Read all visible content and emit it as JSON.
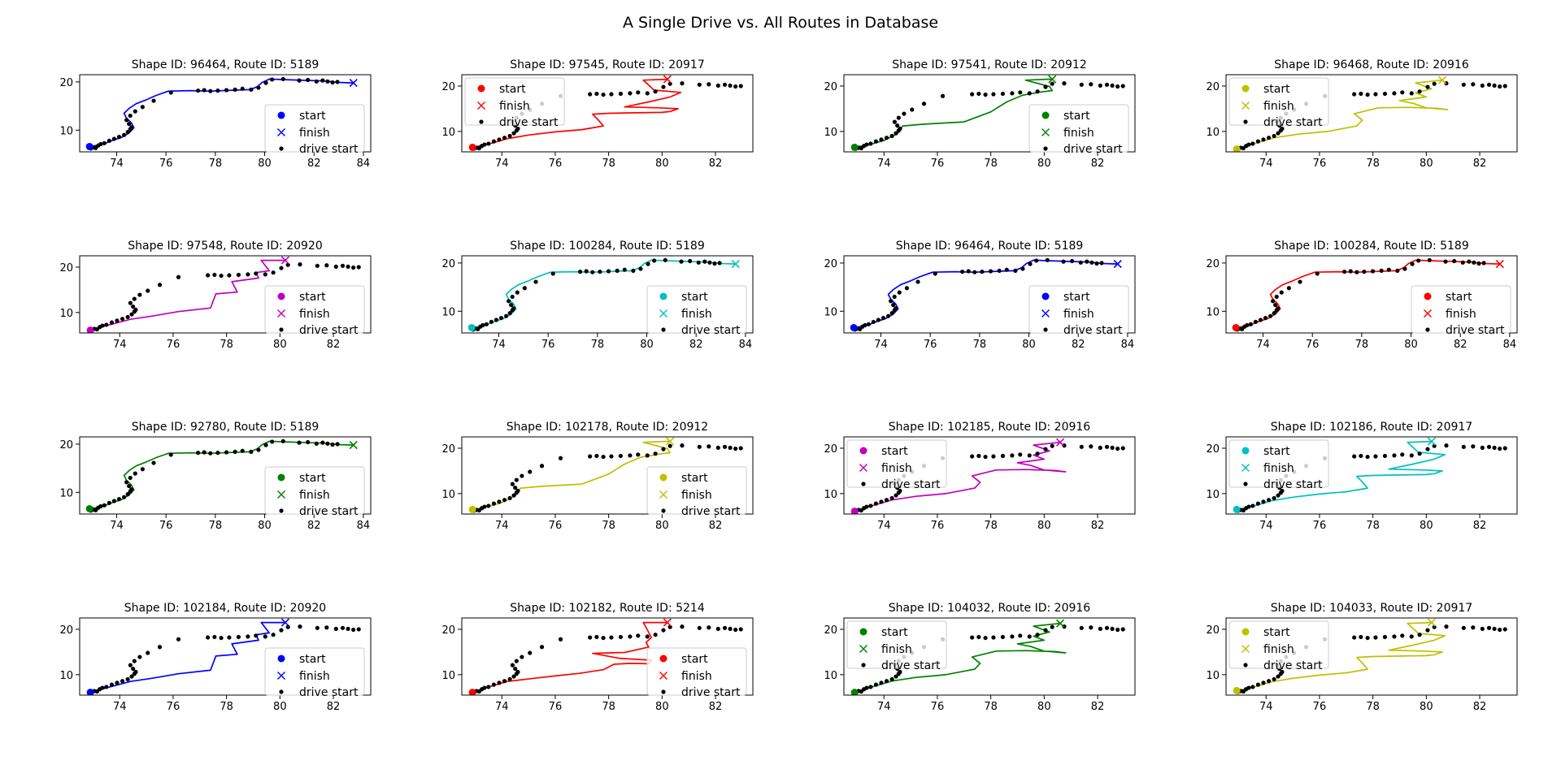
{
  "figure": {
    "title": "A Single Drive vs. All Routes in Database"
  },
  "chart_data": [
    {
      "type": "line",
      "title": "Shape ID: 96464, Route ID: 5189",
      "color": "#0000ff",
      "route": "A",
      "xlim": [
        72.5,
        84.3
      ],
      "xticks": [
        74,
        76,
        78,
        80,
        82,
        84
      ],
      "ylim": [
        5.5,
        21.5
      ],
      "yticks": [
        10,
        20
      ],
      "legend_loc": "lower-right",
      "series": [
        {
          "name": "start"
        },
        {
          "name": "finish"
        },
        {
          "name": "drive start"
        }
      ]
    },
    {
      "type": "line",
      "title": "Shape ID: 97545, Route ID: 20917",
      "color": "#ff0000",
      "route": "B",
      "xlim": [
        72.5,
        83.4
      ],
      "xticks": [
        74,
        76,
        78,
        80,
        82
      ],
      "ylim": [
        5.5,
        22.5
      ],
      "yticks": [
        10,
        20
      ],
      "legend_loc": "upper-left",
      "series": [
        {
          "name": "start"
        },
        {
          "name": "finish"
        },
        {
          "name": "drive start"
        }
      ]
    },
    {
      "type": "line",
      "title": "Shape ID: 97541, Route ID: 20912",
      "color": "#008000",
      "route": "C",
      "xlim": [
        72.5,
        83.4
      ],
      "xticks": [
        74,
        76,
        78,
        80,
        82
      ],
      "ylim": [
        5.5,
        22.5
      ],
      "yticks": [
        10,
        20
      ],
      "legend_loc": "lower-right",
      "series": [
        {
          "name": "start"
        },
        {
          "name": "finish"
        },
        {
          "name": "drive start"
        }
      ]
    },
    {
      "type": "line",
      "title": "Shape ID: 96468, Route ID: 20916",
      "color": "#bfbf00",
      "route": "D",
      "xlim": [
        72.5,
        83.4
      ],
      "xticks": [
        74,
        76,
        78,
        80,
        82
      ],
      "ylim": [
        5.5,
        22.5
      ],
      "yticks": [
        10,
        20
      ],
      "legend_loc": "upper-left",
      "series": [
        {
          "name": "start"
        },
        {
          "name": "finish"
        },
        {
          "name": "drive start"
        }
      ]
    },
    {
      "type": "line",
      "title": "Shape ID: 97548, Route ID: 20920",
      "color": "#bf00bf",
      "route": "E",
      "xlim": [
        72.5,
        83.4
      ],
      "xticks": [
        74,
        76,
        78,
        80,
        82
      ],
      "ylim": [
        5.5,
        22.5
      ],
      "yticks": [
        10,
        20
      ],
      "legend_loc": "lower-right",
      "series": [
        {
          "name": "start"
        },
        {
          "name": "finish"
        },
        {
          "name": "drive start"
        }
      ]
    },
    {
      "type": "line",
      "title": "Shape ID: 100284, Route ID: 5189",
      "color": "#00bfbf",
      "route": "A",
      "xlim": [
        72.5,
        84.3
      ],
      "xticks": [
        74,
        76,
        78,
        80,
        82,
        84
      ],
      "ylim": [
        5.5,
        21.5
      ],
      "yticks": [
        10,
        20
      ],
      "legend_loc": "lower-right",
      "series": [
        {
          "name": "start"
        },
        {
          "name": "finish"
        },
        {
          "name": "drive start"
        }
      ]
    },
    {
      "type": "line",
      "title": "Shape ID: 96464, Route ID: 5189",
      "color": "#0000ff",
      "route": "A",
      "xlim": [
        72.5,
        84.3
      ],
      "xticks": [
        74,
        76,
        78,
        80,
        82,
        84
      ],
      "ylim": [
        5.5,
        21.5
      ],
      "yticks": [
        10,
        20
      ],
      "legend_loc": "lower-right",
      "series": [
        {
          "name": "start"
        },
        {
          "name": "finish"
        },
        {
          "name": "drive start"
        }
      ]
    },
    {
      "type": "line",
      "title": "Shape ID: 100284, Route ID: 5189",
      "color": "#ff0000",
      "route": "A",
      "xlim": [
        72.5,
        84.3
      ],
      "xticks": [
        74,
        76,
        78,
        80,
        82,
        84
      ],
      "ylim": [
        5.5,
        21.5
      ],
      "yticks": [
        10,
        20
      ],
      "legend_loc": "lower-right",
      "series": [
        {
          "name": "start"
        },
        {
          "name": "finish"
        },
        {
          "name": "drive start"
        }
      ]
    },
    {
      "type": "line",
      "title": "Shape ID: 92780, Route ID: 5189",
      "color": "#008000",
      "route": "A",
      "xlim": [
        72.5,
        84.3
      ],
      "xticks": [
        74,
        76,
        78,
        80,
        82,
        84
      ],
      "ylim": [
        5.5,
        21.5
      ],
      "yticks": [
        10,
        20
      ],
      "legend_loc": "lower-right",
      "series": [
        {
          "name": "start"
        },
        {
          "name": "finish"
        },
        {
          "name": "drive start"
        }
      ]
    },
    {
      "type": "line",
      "title": "Shape ID: 102178, Route ID: 20912",
      "color": "#bfbf00",
      "route": "C",
      "xlim": [
        72.5,
        83.4
      ],
      "xticks": [
        74,
        76,
        78,
        80,
        82
      ],
      "ylim": [
        5.5,
        22.5
      ],
      "yticks": [
        10,
        20
      ],
      "legend_loc": "lower-right",
      "series": [
        {
          "name": "start"
        },
        {
          "name": "finish"
        },
        {
          "name": "drive start"
        }
      ]
    },
    {
      "type": "line",
      "title": "Shape ID: 102185, Route ID: 20916",
      "color": "#bf00bf",
      "route": "D",
      "xlim": [
        72.5,
        83.4
      ],
      "xticks": [
        74,
        76,
        78,
        80,
        82
      ],
      "ylim": [
        5.5,
        22.5
      ],
      "yticks": [
        10,
        20
      ],
      "legend_loc": "upper-left",
      "series": [
        {
          "name": "start"
        },
        {
          "name": "finish"
        },
        {
          "name": "drive start"
        }
      ]
    },
    {
      "type": "line",
      "title": "Shape ID: 102186, Route ID: 20917",
      "color": "#00bfbf",
      "route": "B",
      "xlim": [
        72.5,
        83.4
      ],
      "xticks": [
        74,
        76,
        78,
        80,
        82
      ],
      "ylim": [
        5.5,
        22.5
      ],
      "yticks": [
        10,
        20
      ],
      "legend_loc": "upper-left",
      "series": [
        {
          "name": "start"
        },
        {
          "name": "finish"
        },
        {
          "name": "drive start"
        }
      ]
    },
    {
      "type": "line",
      "title": "Shape ID: 102184, Route ID: 20920",
      "color": "#0000ff",
      "route": "E",
      "xlim": [
        72.5,
        83.4
      ],
      "xticks": [
        74,
        76,
        78,
        80,
        82
      ],
      "ylim": [
        5.5,
        22.5
      ],
      "yticks": [
        10,
        20
      ],
      "legend_loc": "lower-right",
      "series": [
        {
          "name": "start"
        },
        {
          "name": "finish"
        },
        {
          "name": "drive start"
        }
      ]
    },
    {
      "type": "line",
      "title": "Shape ID: 102182, Route ID: 5214",
      "color": "#ff0000",
      "route": "F",
      "xlim": [
        72.5,
        83.4
      ],
      "xticks": [
        74,
        76,
        78,
        80,
        82
      ],
      "ylim": [
        5.5,
        22.5
      ],
      "yticks": [
        10,
        20
      ],
      "legend_loc": "lower-right",
      "series": [
        {
          "name": "start"
        },
        {
          "name": "finish"
        },
        {
          "name": "drive start"
        }
      ]
    },
    {
      "type": "line",
      "title": "Shape ID: 104032, Route ID: 20916",
      "color": "#008000",
      "route": "D",
      "xlim": [
        72.5,
        83.4
      ],
      "xticks": [
        74,
        76,
        78,
        80,
        82
      ],
      "ylim": [
        5.5,
        22.5
      ],
      "yticks": [
        10,
        20
      ],
      "legend_loc": "upper-left",
      "series": [
        {
          "name": "start"
        },
        {
          "name": "finish"
        },
        {
          "name": "drive start"
        }
      ]
    },
    {
      "type": "line",
      "title": "Shape ID: 104033, Route ID: 20917",
      "color": "#bfbf00",
      "route": "B",
      "xlim": [
        72.5,
        83.4
      ],
      "xticks": [
        74,
        76,
        78,
        80,
        82
      ],
      "ylim": [
        5.5,
        22.5
      ],
      "yticks": [
        10,
        20
      ],
      "legend_loc": "upper-left",
      "series": [
        {
          "name": "start"
        },
        {
          "name": "finish"
        },
        {
          "name": "drive start"
        }
      ]
    }
  ],
  "routes": {
    "A": {
      "x": [
        72.9,
        73.4,
        73.8,
        74.2,
        74.5,
        74.7,
        74.6,
        74.4,
        74.3,
        74.5,
        74.8,
        75.2,
        75.6,
        76.1,
        77,
        77.8,
        78.3,
        78.8,
        79.4,
        79.7,
        79.9,
        80.2,
        80.6,
        81.2,
        81.8,
        82.4,
        83,
        83.6
      ],
      "y": [
        6.6,
        7,
        7.8,
        8.5,
        9.4,
        10.5,
        11.5,
        12.5,
        13.5,
        14.5,
        15.5,
        16.3,
        17.2,
        18.1,
        18.2,
        18.1,
        18.2,
        18.3,
        18.4,
        19,
        19.9,
        20.6,
        20.5,
        20.4,
        20.3,
        20.2,
        19.9,
        19.8
      ]
    },
    "B": {
      "x": [
        72.9,
        73.5,
        74.2,
        75,
        76,
        77,
        77.8,
        77.6,
        77.4,
        78,
        79,
        80,
        80.3,
        80.6,
        79.9,
        78.6,
        79.5,
        80.3,
        80.7,
        79.7,
        79.3,
        80.2
      ],
      "y": [
        6.5,
        7.2,
        8.4,
        9.2,
        9.9,
        10.4,
        11.2,
        12.6,
        13.8,
        14,
        14.1,
        14.2,
        14.4,
        15,
        15.2,
        15.4,
        16.5,
        17.6,
        18.6,
        19.1,
        21.3,
        21.5
      ]
    },
    "C": {
      "x": [
        72.9,
        73.4,
        74,
        74.5,
        74.7,
        75.5,
        77,
        78,
        78.6,
        79.2,
        79.6,
        79.9,
        80.3,
        80.2,
        79.3,
        80.1,
        80.3
      ],
      "y": [
        6.5,
        7,
        8,
        9.5,
        11.2,
        11.6,
        12.1,
        14.3,
        16.5,
        18,
        18.4,
        18.7,
        19,
        19.9,
        21.3,
        21.5,
        21.5
      ]
    },
    "D": {
      "x": [
        72.9,
        73.6,
        74.3,
        75.2,
        76.3,
        77.4,
        77.6,
        77.3,
        78.2,
        79.3,
        80.4,
        80.8,
        80,
        79.5,
        79,
        80,
        79.6,
        80.2,
        79.6,
        80.6
      ],
      "y": [
        6.1,
        7.4,
        8.6,
        9.4,
        10,
        11.2,
        12.5,
        13.9,
        15.2,
        15.3,
        15.1,
        14.8,
        15.2,
        16.2,
        16.8,
        17.6,
        18.5,
        19.4,
        20.7,
        21.3
      ]
    },
    "E": {
      "x": [
        72.9,
        73.5,
        74.4,
        75.2,
        76.2,
        77.4,
        77.6,
        78.4,
        78.2,
        79.2,
        79.1,
        79.6,
        79.3,
        80.2
      ],
      "y": [
        6.1,
        7.1,
        8.5,
        9.2,
        10.2,
        11,
        14.1,
        14.5,
        16.8,
        17.6,
        18.8,
        19.2,
        21.5,
        21.5
      ]
    },
    "F": {
      "x": [
        72.9,
        73.4,
        74.2,
        75.2,
        76.1,
        76.9,
        77.8,
        78.2,
        78.8,
        79.5,
        79.6,
        78.4,
        77.4,
        78.6,
        79.5,
        79.4,
        79.6,
        79.3,
        80.2
      ],
      "y": [
        6.1,
        7.1,
        8.5,
        9.2,
        9.8,
        10.3,
        11.1,
        12.3,
        12.5,
        12.4,
        13.2,
        13.6,
        14.7,
        14.9,
        16.1,
        17.1,
        18.2,
        21.5,
        21.5
      ]
    }
  },
  "drive_starts": {
    "x": [
      72.95,
      73.05,
      73.15,
      73.25,
      73.35,
      73.5,
      73.7,
      73.9,
      74.1,
      74.3,
      74.45,
      74.55,
      74.6,
      74.5,
      74.4,
      74.55,
      74.75,
      75.05,
      75.5,
      76.2,
      77.3,
      77.55,
      77.8,
      78.1,
      78.45,
      78.8,
      79.1,
      79.45,
      79.75,
      80.05,
      80.3,
      80.75,
      81.4,
      81.75,
      82.1,
      82.35,
      82.55,
      82.75,
      82.95
    ],
    "y": [
      6.2,
      6.4,
      6.3,
      6.8,
      7.1,
      7.3,
      7.8,
      8.2,
      8.6,
      9,
      9.6,
      10.2,
      10.6,
      11.3,
      12.1,
      13,
      13.9,
      14.8,
      16.1,
      17.8,
      18.2,
      18.3,
      18.1,
      18.2,
      18.3,
      18.4,
      18.6,
      18.4,
      18.8,
      19.8,
      20.5,
      20.6,
      20.3,
      20.4,
      20.1,
      20.3,
      20.1,
      19.9,
      20
    ]
  }
}
